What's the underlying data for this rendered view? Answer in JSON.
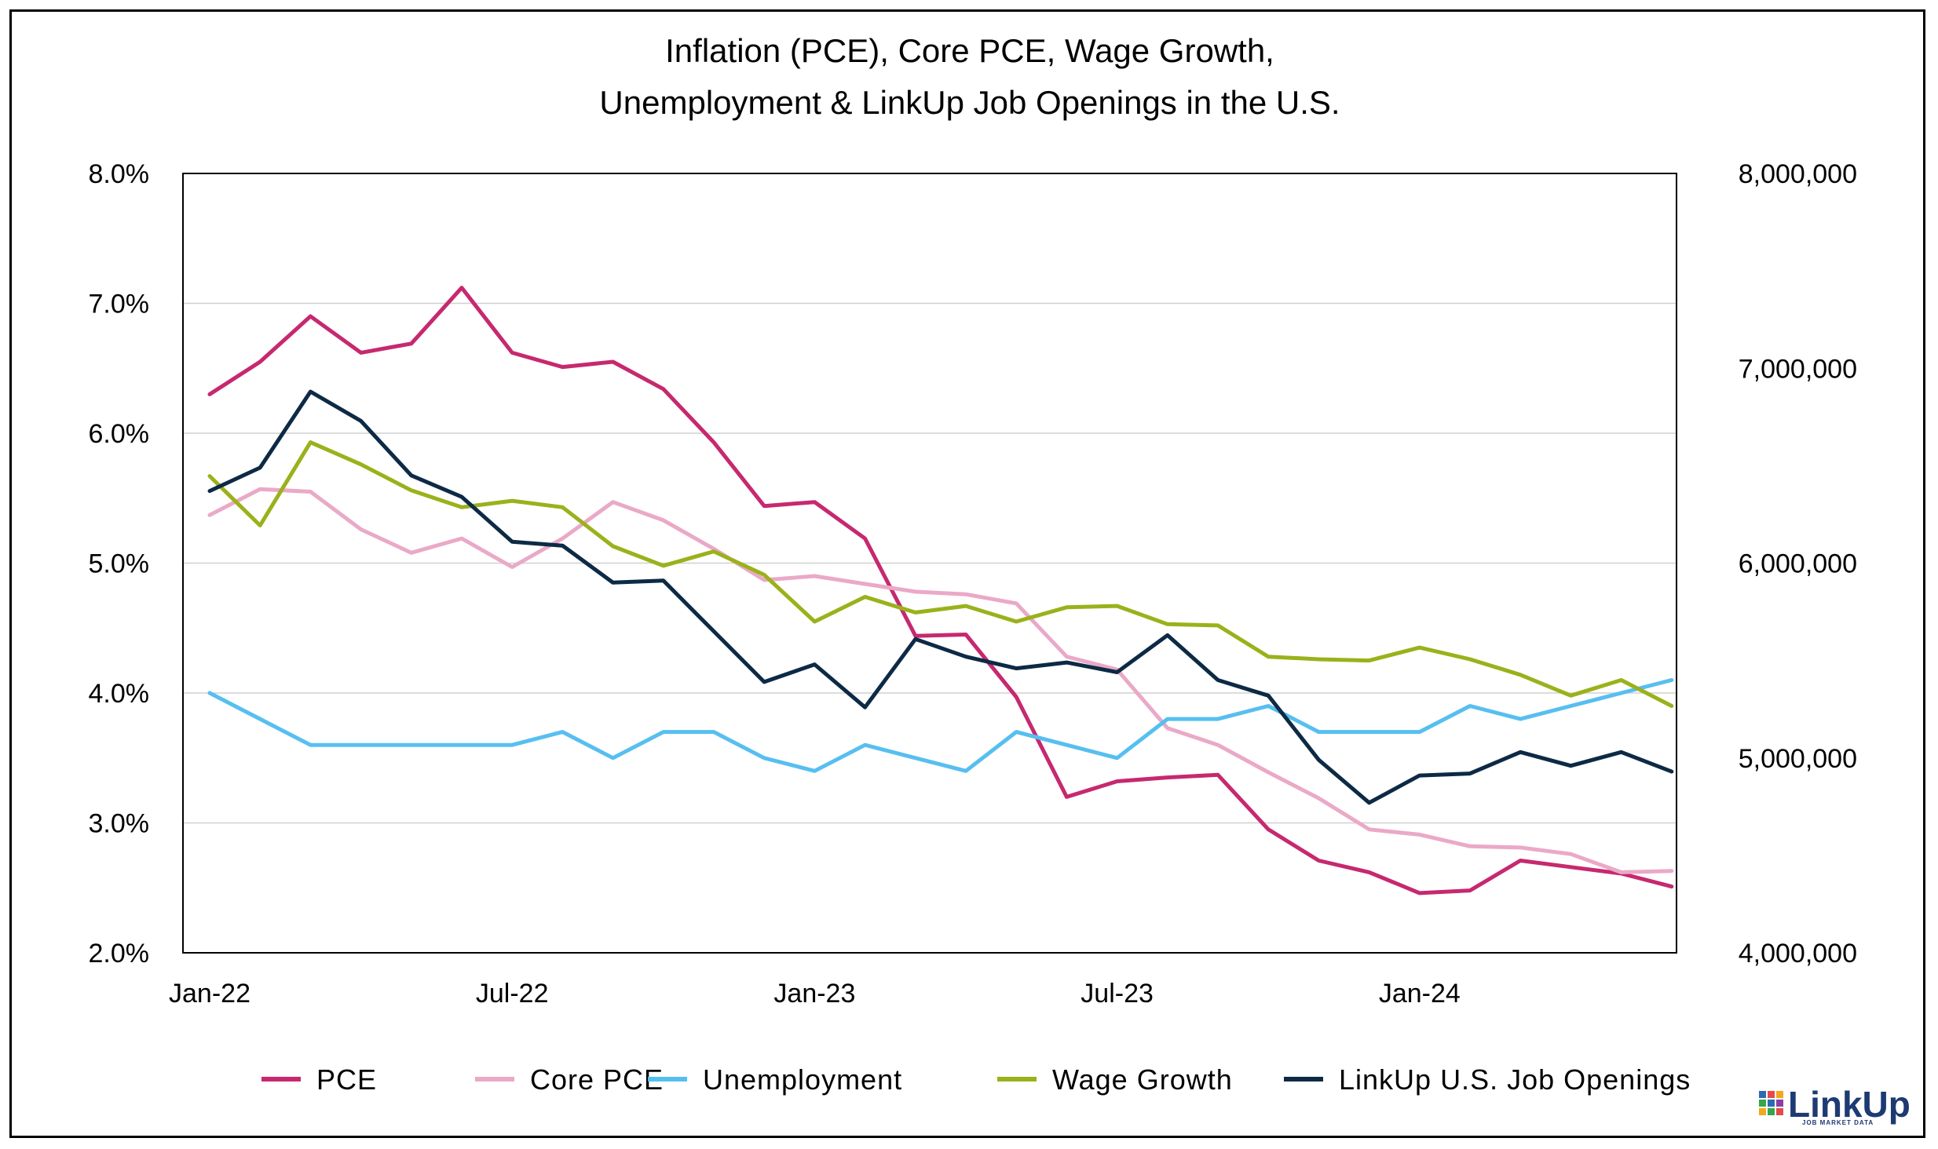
{
  "chart_data": {
    "type": "line",
    "title_line1": "Inflation (PCE), Core PCE, Wage Growth,",
    "title_line2": "Unemployment & LinkUp Job Openings in the U.S.",
    "x": [
      "Jan-22",
      "Feb-22",
      "Mar-22",
      "Apr-22",
      "May-22",
      "Jun-22",
      "Jul-22",
      "Aug-22",
      "Sep-22",
      "Oct-22",
      "Nov-22",
      "Dec-22",
      "Jan-23",
      "Feb-23",
      "Mar-23",
      "Apr-23",
      "May-23",
      "Jun-23",
      "Jul-23",
      "Aug-23",
      "Sep-23",
      "Oct-23",
      "Nov-23",
      "Dec-23",
      "Jan-24",
      "Feb-24",
      "Mar-24",
      "Apr-24",
      "May-24",
      "Jun-24"
    ],
    "x_tick_labels": [
      {
        "index": 0,
        "label": "Jan-22"
      },
      {
        "index": 6,
        "label": "Jul-22"
      },
      {
        "index": 12,
        "label": "Jan-23"
      },
      {
        "index": 18,
        "label": "Jul-23"
      },
      {
        "index": 24,
        "label": "Jan-24"
      }
    ],
    "y_left": {
      "min": 2.0,
      "max": 8.0,
      "ticks": [
        "2.0%",
        "3.0%",
        "4.0%",
        "5.0%",
        "6.0%",
        "7.0%",
        "8.0%"
      ],
      "tick_values": [
        2,
        3,
        4,
        5,
        6,
        7,
        8
      ]
    },
    "y_right": {
      "min": 4000000,
      "max": 8000000,
      "ticks": [
        "4,000,000",
        "5,000,000",
        "6,000,000",
        "7,000,000",
        "8,000,000"
      ],
      "tick_values": [
        4000000,
        5000000,
        6000000,
        7000000,
        8000000
      ]
    },
    "grid": "horizontal",
    "legend_position": "bottom",
    "series": [
      {
        "name": "PCE",
        "axis": "left",
        "color": "#c6296f",
        "values": [
          6.3,
          6.55,
          6.9,
          6.62,
          6.69,
          7.12,
          6.62,
          6.51,
          6.55,
          6.34,
          5.93,
          5.44,
          5.47,
          5.19,
          4.44,
          4.45,
          3.97,
          3.2,
          3.32,
          3.35,
          3.37,
          2.95,
          2.71,
          2.62,
          2.46,
          2.48,
          2.71,
          2.66,
          2.61,
          2.51
        ]
      },
      {
        "name": "Core PCE",
        "axis": "left",
        "color": "#eaa9c7",
        "values": [
          5.37,
          5.57,
          5.55,
          5.26,
          5.08,
          5.19,
          4.97,
          5.19,
          5.47,
          5.33,
          5.11,
          4.87,
          4.9,
          4.84,
          4.78,
          4.76,
          4.69,
          4.28,
          4.18,
          3.73,
          3.6,
          3.39,
          3.19,
          2.95,
          2.91,
          2.82,
          2.81,
          2.76,
          2.62,
          2.63
        ]
      },
      {
        "name": "Unemployment",
        "axis": "left",
        "color": "#57bff0",
        "values": [
          4.0,
          3.8,
          3.6,
          3.6,
          3.6,
          3.6,
          3.6,
          3.7,
          3.5,
          3.7,
          3.7,
          3.5,
          3.4,
          3.6,
          3.5,
          3.4,
          3.7,
          3.6,
          3.5,
          3.8,
          3.8,
          3.9,
          3.7,
          3.7,
          3.7,
          3.9,
          3.8,
          3.9,
          4.0,
          4.1
        ]
      },
      {
        "name": "Wage Growth",
        "axis": "left",
        "color": "#9bb11b",
        "values": [
          5.67,
          5.29,
          5.93,
          5.76,
          5.56,
          5.43,
          5.48,
          5.43,
          5.13,
          4.98,
          5.09,
          4.91,
          4.55,
          4.74,
          4.62,
          4.67,
          4.55,
          4.66,
          4.67,
          4.53,
          4.52,
          4.28,
          4.26,
          4.25,
          4.35,
          4.26,
          4.14,
          3.98,
          4.1,
          3.9
        ]
      },
      {
        "name": "LinkUp U.S. Job Openings",
        "axis": "right",
        "color": "#0d2a45",
        "values": [
          6370000,
          6490000,
          6880000,
          6730000,
          6450000,
          6340000,
          6110000,
          6090000,
          5900000,
          5910000,
          5650000,
          5390000,
          5480000,
          5260000,
          5610000,
          5520000,
          5460000,
          5490000,
          5440000,
          5630000,
          5400000,
          5320000,
          4990000,
          4770000,
          4910000,
          4920000,
          5030000,
          4960000,
          5030000,
          4930000
        ]
      }
    ]
  },
  "logo": {
    "name": "LinkUp",
    "tagline": "JOB MARKET DATA"
  }
}
